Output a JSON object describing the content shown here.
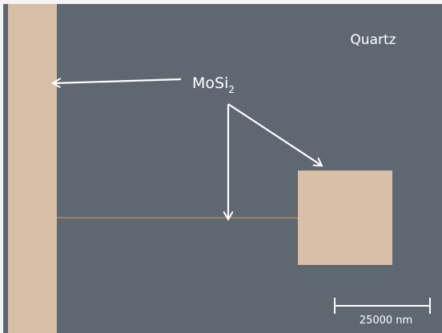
{
  "labels": {
    "substrate": "Quartz",
    "material": {
      "text": "MoSi",
      "subscript": "2"
    },
    "scale_bar": "25000 nm"
  }
}
